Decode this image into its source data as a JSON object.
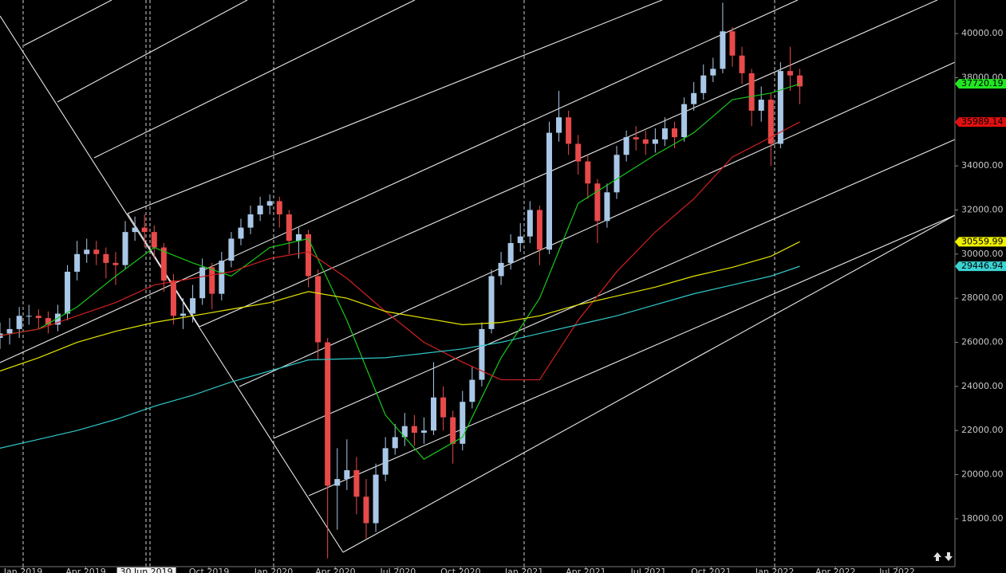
{
  "chart_data": {
    "type": "candlestick",
    "up_color": "#a9c8e8",
    "down_color": "#e84a4a",
    "xlim": [
      0,
      99.1
    ],
    "ylim": [
      15540,
      41520
    ],
    "xticks": [
      {
        "value": 2.4,
        "label": "Jan 2019"
      },
      {
        "value": 8.9,
        "label": "Apr 2019"
      },
      {
        "value": 15.2,
        "label": "30 Jun 2019",
        "highlight": true
      },
      {
        "value": 21.7,
        "label": "Oct 2019"
      },
      {
        "value": 28.4,
        "label": "Jan 2020"
      },
      {
        "value": 34.8,
        "label": "Apr 2020"
      },
      {
        "value": 41.3,
        "label": "Jul 2020"
      },
      {
        "value": 47.8,
        "label": "Oct 2020"
      },
      {
        "value": 54.4,
        "label": "Jan 2021"
      },
      {
        "value": 60.8,
        "label": "Apr 2021"
      },
      {
        "value": 67.3,
        "label": "Jul 2021"
      },
      {
        "value": 73.8,
        "label": "Oct 2021"
      },
      {
        "value": 80.4,
        "label": "Jan 2022"
      },
      {
        "value": 86.7,
        "label": "Apr 2022"
      },
      {
        "value": 93.1,
        "label": "Jul 2022"
      }
    ],
    "yticks": [
      {
        "value": 18000,
        "label": "18000.00"
      },
      {
        "value": 20000,
        "label": "20000.00"
      },
      {
        "value": 22000,
        "label": "22000.00"
      },
      {
        "value": 24000,
        "label": "24000.00"
      },
      {
        "value": 26000,
        "label": "26000.00"
      },
      {
        "value": 28000,
        "label": "28000.00"
      },
      {
        "value": 30000,
        "label": "30000.00"
      },
      {
        "value": 32000,
        "label": "32000.00"
      },
      {
        "value": 34000,
        "label": "34000.00"
      },
      {
        "value": 36000,
        "label": "36000.00"
      },
      {
        "value": 38000,
        "label": "38000.00"
      },
      {
        "value": 40000,
        "label": "40000.00"
      }
    ],
    "open": [
      26200,
      26400,
      26600,
      27200,
      27200,
      27100,
      26800,
      27300,
      29200,
      30000,
      30200,
      30000,
      29600,
      29500,
      31000,
      31200,
      31000,
      30300,
      28800,
      27200,
      27300,
      28000,
      29400,
      28200,
      29700,
      30700,
      31200,
      31800,
      32200,
      32400,
      31800,
      30600,
      30900,
      29000,
      26000,
      19500,
      19800,
      20200,
      19000,
      17800,
      20000,
      21200,
      21700,
      22200,
      21900,
      22000,
      23500,
      22600,
      21400,
      23300,
      24300,
      26600,
      29000,
      29600,
      30500,
      30800,
      32000,
      30200,
      35500,
      36200,
      35000,
      34200,
      33200,
      31500,
      32800,
      34500,
      35300,
      35200,
      35000,
      35200,
      35700,
      35300,
      36800,
      37300,
      38100,
      38400,
      40100,
      39000,
      38200,
      36500,
      37000,
      35000,
      38300,
      38100
    ],
    "high": [
      26900,
      27100,
      27600,
      27700,
      27500,
      27400,
      27700,
      29500,
      30600,
      30700,
      30600,
      30300,
      30100,
      31500,
      31700,
      31800,
      31300,
      30500,
      29100,
      28000,
      28600,
      29800,
      29600,
      30100,
      31000,
      31600,
      32200,
      32600,
      32700,
      32600,
      32000,
      31200,
      31100,
      29300,
      26200,
      21200,
      21600,
      20800,
      19800,
      20500,
      21700,
      22300,
      22800,
      22700,
      22600,
      25100,
      24000,
      22900,
      23800,
      24900,
      26900,
      29300,
      30100,
      30900,
      31400,
      32400,
      32200,
      36000,
      37400,
      36500,
      35400,
      34500,
      33400,
      33200,
      34900,
      35600,
      35800,
      35600,
      35700,
      36200,
      36000,
      37100,
      37800,
      38600,
      38900,
      41400,
      40300,
      39400,
      38400,
      37600,
      37300,
      38700,
      39400,
      38400
    ],
    "low": [
      25700,
      25900,
      26200,
      26800,
      26600,
      26400,
      26500,
      27000,
      28800,
      29600,
      29500,
      28900,
      28600,
      29300,
      30600,
      30300,
      29800,
      28300,
      26800,
      26600,
      26900,
      27700,
      27500,
      27900,
      29400,
      30400,
      30900,
      31500,
      31800,
      31200,
      30000,
      29800,
      28500,
      25200,
      16200,
      17500,
      19300,
      18200,
      17100,
      17400,
      19700,
      20900,
      21300,
      21300,
      21400,
      21800,
      22000,
      20500,
      21100,
      23000,
      24000,
      26400,
      28600,
      29300,
      30100,
      30500,
      29500,
      30000,
      35100,
      34500,
      33600,
      32500,
      30500,
      31200,
      32500,
      34200,
      34700,
      34500,
      34600,
      34900,
      34800,
      35100,
      36500,
      37000,
      37800,
      38200,
      38500,
      37700,
      35800,
      36000,
      34000,
      34800,
      37400,
      36800
    ],
    "close": [
      26400,
      26600,
      27200,
      27200,
      27100,
      26800,
      27300,
      29200,
      30000,
      30200,
      30000,
      29600,
      29500,
      31000,
      31200,
      31000,
      30300,
      28800,
      27200,
      27300,
      28000,
      29400,
      28200,
      29700,
      30700,
      31200,
      31800,
      32200,
      32400,
      31800,
      30600,
      30900,
      29000,
      26000,
      19500,
      19800,
      20200,
      19000,
      17800,
      20000,
      21200,
      21700,
      22200,
      21900,
      22000,
      23500,
      22600,
      21400,
      23300,
      24300,
      26600,
      29000,
      29600,
      30500,
      30800,
      32000,
      30200,
      35500,
      36200,
      35000,
      34200,
      33200,
      31500,
      32800,
      34500,
      35300,
      35200,
      35000,
      35200,
      35700,
      35300,
      36800,
      37300,
      38100,
      38400,
      40100,
      39000,
      38200,
      36500,
      37000,
      35000,
      38300,
      38100,
      37600
    ],
    "series": [
      {
        "color": "#19c819",
        "label_bg": "#22e622",
        "x": [
          0,
          4,
          8,
          12,
          16,
          20,
          24,
          28,
          32,
          36,
          40,
          44,
          48,
          52,
          56,
          60,
          64,
          68,
          72,
          76,
          80,
          83
        ],
        "values": [
          26300,
          26600,
          27600,
          29000,
          30300,
          29600,
          29000,
          30300,
          30700,
          27000,
          22700,
          20700,
          21700,
          25300,
          28000,
          32300,
          33400,
          34500,
          35500,
          37000,
          37300,
          37720.19
        ]
      },
      {
        "color": "#d42020",
        "label_bg": "#e01010",
        "x": [
          0,
          4,
          8,
          12,
          16,
          20,
          24,
          28,
          32,
          36,
          40,
          44,
          48,
          52,
          56,
          60,
          64,
          68,
          72,
          76,
          80,
          83
        ],
        "values": [
          26300,
          26600,
          27200,
          27800,
          28600,
          28900,
          29200,
          29800,
          30100,
          28900,
          27400,
          26000,
          25100,
          24300,
          24300,
          27000,
          29200,
          31000,
          32500,
          34400,
          35300,
          35989.14
        ]
      },
      {
        "color": "#e6e600",
        "label_bg": "#f0f000",
        "x": [
          0,
          4,
          8,
          12,
          16,
          20,
          24,
          28,
          32,
          36,
          40,
          44,
          48,
          52,
          56,
          60,
          64,
          68,
          72,
          76,
          80,
          83
        ],
        "values": [
          24700,
          25300,
          26000,
          26500,
          26900,
          27200,
          27500,
          27800,
          28300,
          28000,
          27400,
          27100,
          26800,
          26900,
          27200,
          27700,
          28100,
          28500,
          29000,
          29400,
          29900,
          30559.99
        ]
      },
      {
        "color": "#30c8c8",
        "label_bg": "#3cd2d2",
        "x": [
          0,
          4,
          8,
          12,
          16,
          20,
          24,
          28,
          32,
          36,
          40,
          44,
          48,
          52,
          56,
          60,
          64,
          68,
          72,
          76,
          80,
          83
        ],
        "values": [
          21200,
          21600,
          22000,
          22500,
          23100,
          23600,
          24200,
          24700,
          25200,
          25250,
          25300,
          25500,
          25700,
          26000,
          26400,
          26800,
          27200,
          27700,
          28200,
          28600,
          29000,
          29446.94
        ]
      }
    ]
  }
}
